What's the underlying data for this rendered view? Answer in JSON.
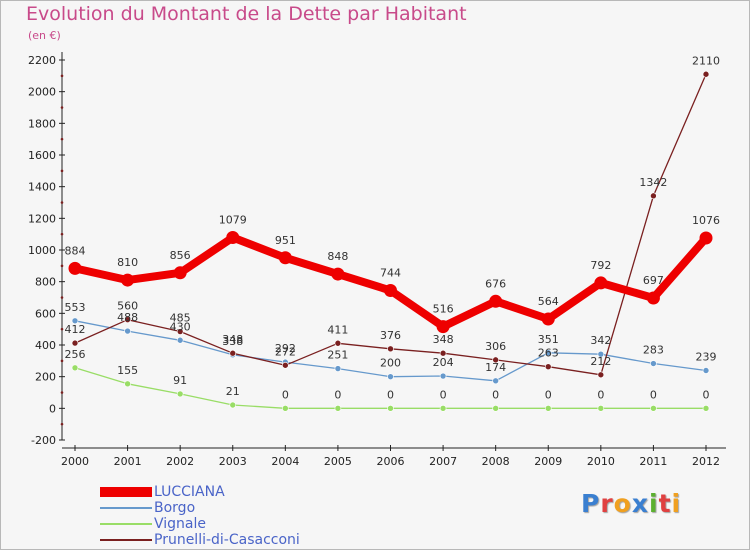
{
  "title": "Evolution du Montant de la Dette par Habitant",
  "subtitle": "(en €)",
  "logo": {
    "letters": [
      {
        "char": "P",
        "color": "#3a7fd0"
      },
      {
        "char": "r",
        "color": "#e04040"
      },
      {
        "char": "o",
        "color": "#f0a020"
      },
      {
        "char": "x",
        "color": "#3a7fd0"
      },
      {
        "char": "i",
        "color": "#5cb030"
      },
      {
        "char": "t",
        "color": "#e04040"
      },
      {
        "char": "i",
        "color": "#f0a020"
      }
    ]
  },
  "chart_data": {
    "type": "line",
    "x": [
      "2000",
      "2001",
      "2002",
      "2003",
      "2004",
      "2005",
      "2006",
      "2007",
      "2008",
      "2009",
      "2010",
      "2011",
      "2012"
    ],
    "ylim": [
      -200,
      2200
    ],
    "yticks": [
      "-200",
      "0",
      "200",
      "400",
      "600",
      "800",
      "1000",
      "1200",
      "1400",
      "1600",
      "1800",
      "2000",
      "2200"
    ],
    "grid": false,
    "legend_position": "bottom-left",
    "series": [
      {
        "name": "LUCCIANA",
        "color": "#ee0000",
        "values": [
          884,
          810,
          856,
          1079,
          951,
          848,
          744,
          516,
          676,
          564,
          792,
          697,
          1076
        ],
        "labels": [
          "884",
          "810",
          "856",
          "1079",
          "951",
          "848",
          "744",
          "516",
          "676",
          "564",
          "792",
          "697",
          "1076"
        ]
      },
      {
        "name": "Borgo",
        "color": "#6699cc",
        "values": [
          553,
          488,
          430,
          338,
          292,
          251,
          200,
          204,
          174,
          351,
          342,
          283,
          239
        ],
        "labels": [
          "553",
          "488",
          "430",
          "338",
          "292",
          "251",
          "200",
          "204",
          "174",
          "351",
          "342",
          "283",
          "239"
        ]
      },
      {
        "name": "Vignale",
        "color": "#99dd66",
        "values": [
          256,
          155,
          91,
          21,
          0,
          0,
          0,
          0,
          0,
          0,
          0,
          0,
          0
        ],
        "labels": [
          "256",
          "155",
          "91",
          "21",
          "0",
          "0",
          "0",
          "0",
          "0",
          "0",
          "0",
          "0",
          "0"
        ]
      },
      {
        "name": "Prunelli-di-Casacconi",
        "color": "#7a2020",
        "values": [
          412,
          560,
          485,
          348,
          272,
          411,
          376,
          348,
          306,
          263,
          212,
          1342,
          2110
        ],
        "labels": [
          "412",
          "560",
          "485",
          "348",
          "272",
          "411",
          "376",
          "348",
          "306",
          "263",
          "212",
          "1342",
          "2110"
        ]
      }
    ]
  }
}
